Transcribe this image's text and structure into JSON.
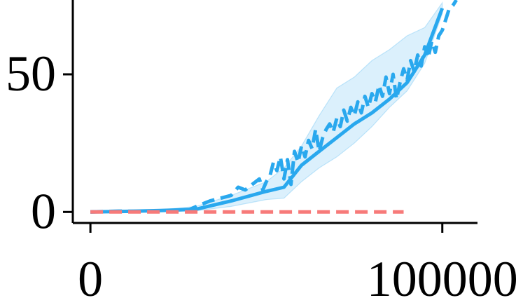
{
  "chart_data": {
    "type": "line",
    "title": "",
    "xlabel": "",
    "ylabel": "",
    "xlim": [
      -5000,
      110000
    ],
    "ylim": [
      -4,
      77
    ],
    "x_ticks": [
      {
        "value": 0,
        "label": "0"
      },
      {
        "value": 100000,
        "label": "100000"
      }
    ],
    "y_ticks": [
      {
        "value": 0,
        "label": "0"
      },
      {
        "value": 50,
        "label": "50"
      }
    ],
    "grid": false,
    "legend": "none",
    "series": [
      {
        "style": "solid",
        "color": "#29a8ee",
        "x": [
          0,
          10000,
          20000,
          30000,
          40000,
          50000,
          55000,
          60000,
          65000,
          70000,
          75000,
          80000,
          85000,
          90000,
          95000,
          100000
        ],
        "y": [
          0,
          0.2,
          0.5,
          1,
          4,
          7.5,
          9,
          17,
          22,
          27,
          32,
          36,
          41,
          47,
          57,
          74
        ]
      },
      {
        "style": "band",
        "color": "#29a8ee",
        "x": [
          0,
          10000,
          20000,
          30000,
          40000,
          50000,
          55000,
          60000,
          65000,
          70000,
          75000,
          80000,
          85000,
          90000,
          95000,
          100000
        ],
        "y_low": [
          0,
          0.1,
          0.2,
          0.4,
          2,
          4.5,
          5,
          11,
          16,
          20,
          25,
          31,
          38,
          44,
          54,
          72
        ],
        "y_high": [
          0,
          0.4,
          0.8,
          2,
          6,
          11,
          16,
          24,
          35,
          45,
          49,
          55,
          59,
          64,
          67,
          76
        ]
      },
      {
        "style": "dashed",
        "color": "#29a8ee",
        "x": [
          0,
          8000,
          15000,
          22000,
          28000,
          31000,
          34000,
          37000,
          40000,
          42000,
          44000,
          46000,
          48000,
          49000,
          50000,
          51000,
          52000,
          53000,
          54000,
          55000,
          56000,
          57000,
          58000,
          59000,
          60000,
          61000,
          62000,
          63000,
          64000,
          65000,
          66000,
          67000,
          68000,
          69000,
          70000,
          71000,
          72000,
          73000,
          74000,
          75000,
          76000,
          77000,
          78000,
          79000,
          80000,
          81000,
          82000,
          83000,
          84000,
          85000,
          86000,
          87000,
          88000,
          89000,
          90000,
          91000,
          92000,
          93000,
          94000,
          95000,
          96000,
          97000,
          98000,
          99000,
          100000,
          101000,
          102000,
          103000,
          104000
        ],
        "y": [
          0,
          0.3,
          0.2,
          0.5,
          0.8,
          2.5,
          4,
          5,
          6,
          9,
          8,
          10,
          12,
          8,
          11,
          13,
          18,
          15,
          20,
          12,
          19,
          10,
          22,
          18,
          24,
          20,
          26,
          23,
          30,
          22,
          27,
          30,
          32,
          29,
          34,
          31,
          37,
          33,
          38,
          35,
          40,
          36,
          42,
          38,
          43,
          40,
          46,
          42,
          49,
          43,
          50,
          41,
          47,
          52,
          48,
          55,
          51,
          57,
          53,
          60,
          56,
          62,
          58,
          64,
          66,
          70,
          74,
          75,
          77
        ]
      },
      {
        "style": "dashed",
        "color": "#f77a79",
        "x": [
          0,
          89000
        ],
        "y": [
          0,
          0
        ]
      }
    ]
  }
}
